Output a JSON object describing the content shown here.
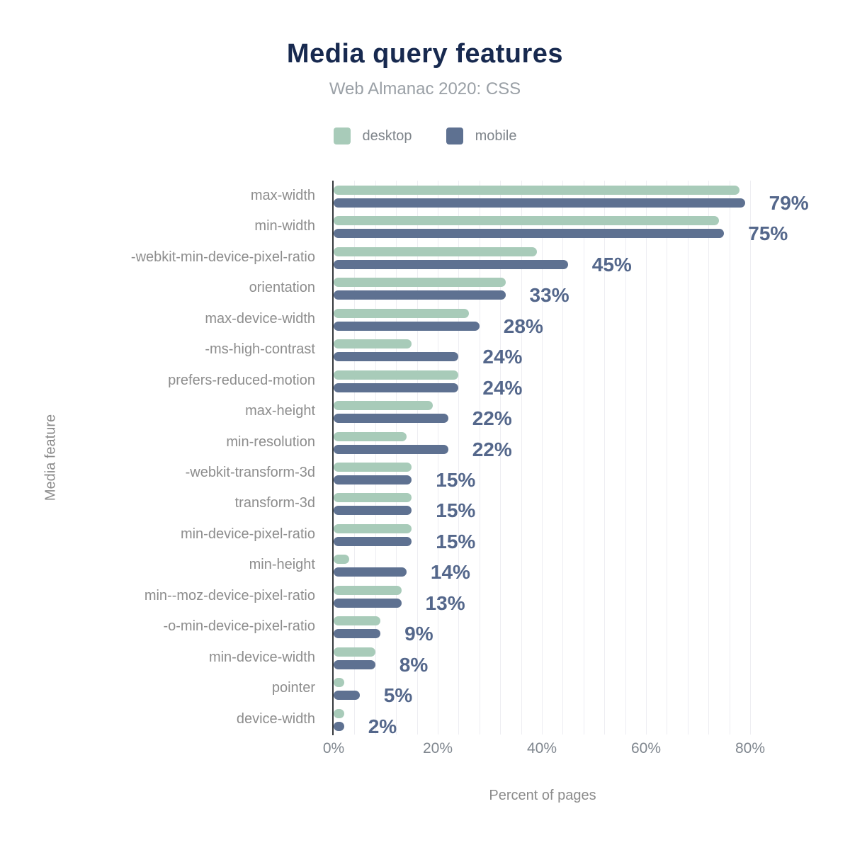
{
  "chart": {
    "title": "Media query features",
    "subtitle": "Web Almanac 2020: CSS"
  },
  "chart_data": {
    "type": "bar",
    "orientation": "horizontal",
    "title": "Media query features",
    "subtitle": "Web Almanac 2020: CSS",
    "xlabel": "Percent of pages",
    "ylabel": "Media feature",
    "xlim": [
      0,
      80
    ],
    "grid": "vertical, minor line every 4%, major ticks every 20%",
    "legend_position": "top",
    "xticks": {
      "values": [
        0,
        20,
        40,
        60,
        80
      ],
      "labels": [
        "0%",
        "20%",
        "40%",
        "60%",
        "80%"
      ]
    },
    "categories": [
      "max-width",
      "min-width",
      "-webkit-min-device-pixel-ratio",
      "orientation",
      "max-device-width",
      "-ms-high-contrast",
      "prefers-reduced-motion",
      "max-height",
      "min-resolution",
      "-webkit-transform-3d",
      "transform-3d",
      "min-device-pixel-ratio",
      "min-height",
      "min--moz-device-pixel-ratio",
      "-o-min-device-pixel-ratio",
      "min-device-width",
      "pointer",
      "device-width"
    ],
    "series": [
      {
        "name": "desktop",
        "color": "#a8cbb9",
        "values": [
          78,
          74,
          39,
          33,
          26,
          15,
          24,
          19,
          14,
          15,
          15,
          15,
          3,
          13,
          9,
          8,
          2,
          2
        ]
      },
      {
        "name": "mobile",
        "color": "#5e7191",
        "values": [
          79,
          75,
          45,
          33,
          28,
          24,
          24,
          22,
          22,
          15,
          15,
          15,
          14,
          13,
          9,
          8,
          5,
          2
        ]
      }
    ],
    "value_labels": [
      "79%",
      "75%",
      "45%",
      "33%",
      "28%",
      "24%",
      "24%",
      "22%",
      "22%",
      "15%",
      "15%",
      "15%",
      "14%",
      "13%",
      "9%",
      "8%",
      "5%",
      "2%"
    ]
  },
  "colors": {
    "desktop": "#a8cbb9",
    "mobile": "#5e7191",
    "title": "#17294f",
    "subtitle": "#9aa0a6",
    "legend_label": "#80868c",
    "category_label": "#8d8d8d",
    "value_label": "#54678b",
    "tick_label": "#7f868e",
    "axis_title": "#8b8b8b",
    "axis_line": "#35383c",
    "gridline": "#ededf2"
  }
}
